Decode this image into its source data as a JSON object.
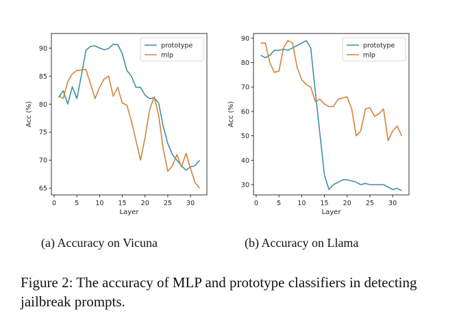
{
  "chart_data": [
    {
      "type": "line",
      "xlabel": "Layer",
      "ylabel": "Acc (%)",
      "xlim": [
        -0.6,
        33.6
      ],
      "ylim": [
        63.8,
        92.6
      ],
      "xticks": [
        0,
        5,
        10,
        15,
        20,
        25,
        30
      ],
      "yticks": [
        65,
        70,
        75,
        80,
        85,
        90
      ],
      "grid": false,
      "legend_position": "top-right",
      "series": [
        {
          "name": "prototype",
          "color": "#3f8fa3",
          "x": [
            1,
            2,
            3,
            4,
            5,
            6,
            7,
            8,
            9,
            10,
            11,
            12,
            13,
            14,
            15,
            16,
            17,
            18,
            19,
            20,
            21,
            22,
            23,
            24,
            25,
            26,
            27,
            28,
            29,
            30,
            31,
            32
          ],
          "values": [
            81.2,
            82.4,
            80.0,
            83.1,
            81.0,
            85.1,
            89.6,
            90.3,
            90.4,
            90.0,
            89.7,
            89.9,
            90.7,
            90.6,
            89.0,
            86.0,
            85.0,
            83.0,
            83.0,
            81.6,
            81.0,
            81.1,
            80.2,
            76.0,
            73.0,
            71.0,
            70.0,
            69.0,
            68.2,
            68.8,
            69.0,
            70.0
          ]
        },
        {
          "name": "mlp",
          "color": "#d4823a",
          "x": [
            1,
            2,
            3,
            4,
            5,
            6,
            7,
            8,
            9,
            10,
            11,
            12,
            13,
            14,
            15,
            16,
            17,
            18,
            19,
            20,
            21,
            22,
            23,
            24,
            25,
            26,
            27,
            28,
            29,
            30,
            31,
            32
          ],
          "values": [
            81.5,
            81.0,
            84.0,
            85.4,
            86.0,
            86.1,
            86.2,
            83.6,
            81.0,
            83.0,
            84.5,
            85.0,
            81.4,
            83.0,
            80.2,
            79.8,
            77.0,
            73.5,
            70.0,
            74.0,
            79.0,
            81.3,
            78.0,
            72.0,
            68.0,
            69.0,
            71.0,
            68.8,
            71.2,
            68.5,
            66.0,
            65.0
          ]
        }
      ]
    },
    {
      "type": "line",
      "xlabel": "Layer",
      "ylabel": "Acc (%)",
      "xlim": [
        -0.6,
        33.6
      ],
      "ylim": [
        25.8,
        91.9
      ],
      "xticks": [
        0,
        5,
        10,
        15,
        20,
        25,
        30
      ],
      "yticks": [
        30,
        40,
        50,
        60,
        70,
        80,
        90
      ],
      "grid": false,
      "legend_position": "top-right",
      "series": [
        {
          "name": "prototype",
          "color": "#3f8fa3",
          "x": [
            1,
            2,
            3,
            4,
            5,
            6,
            7,
            8,
            9,
            10,
            11,
            12,
            13,
            14,
            15,
            16,
            17,
            18,
            19,
            20,
            21,
            22,
            23,
            24,
            25,
            26,
            27,
            28,
            29,
            30,
            31,
            32
          ],
          "values": [
            83.0,
            82.0,
            83.0,
            85.0,
            85.0,
            85.5,
            85.0,
            86.0,
            87.0,
            88.0,
            89.0,
            86.0,
            68.0,
            51.0,
            34.0,
            28.0,
            30.0,
            31.0,
            32.0,
            32.0,
            31.5,
            31.0,
            30.0,
            30.5,
            30.0,
            30.0,
            30.0,
            30.0,
            29.0,
            28.0,
            28.5,
            27.5
          ]
        },
        {
          "name": "mlp",
          "color": "#d4823a",
          "x": [
            1,
            2,
            3,
            4,
            5,
            6,
            7,
            8,
            9,
            10,
            11,
            12,
            13,
            14,
            15,
            16,
            17,
            18,
            19,
            20,
            21,
            22,
            23,
            24,
            25,
            26,
            27,
            28,
            29,
            30,
            31,
            32
          ],
          "values": [
            88.0,
            88.0,
            80.0,
            76.0,
            76.5,
            86.0,
            89.0,
            88.0,
            78.0,
            73.0,
            71.0,
            70.0,
            64.0,
            65.0,
            63.0,
            62.0,
            62.0,
            65.0,
            65.5,
            66.0,
            61.0,
            50.0,
            52.0,
            61.0,
            61.5,
            58.0,
            59.0,
            61.0,
            48.0,
            52.0,
            54.0,
            50.0
          ]
        }
      ]
    }
  ],
  "captions": {
    "sub_a": "(a) Accuracy on Vicuna",
    "sub_b": "(b) Accuracy on Llama",
    "figure": "Figure 2: The accuracy of MLP and prototype classifiers in detecting jailbreak prompts."
  }
}
